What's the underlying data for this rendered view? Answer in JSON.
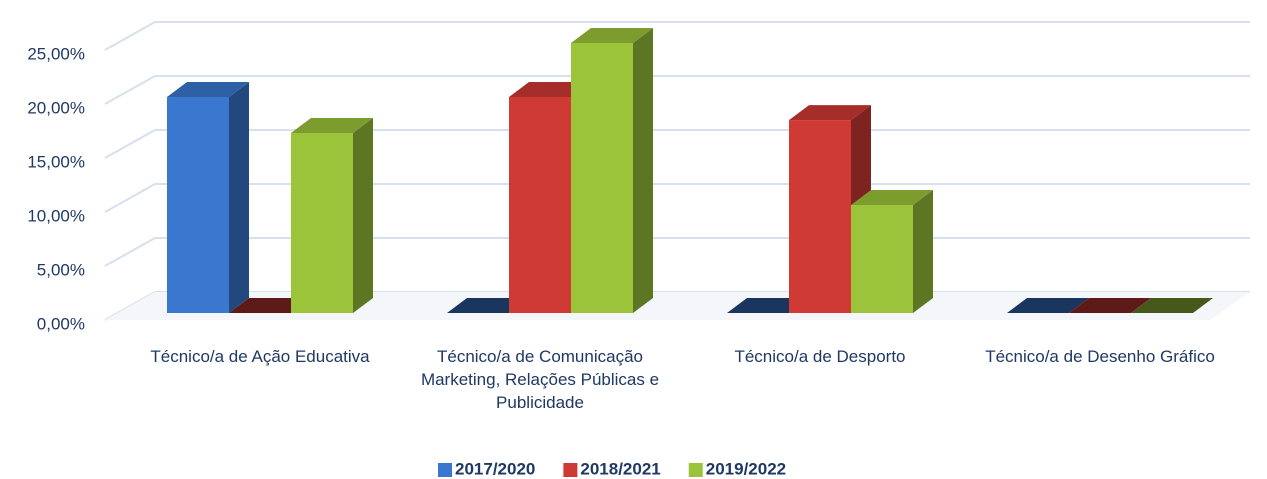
{
  "chart_data": {
    "type": "bar3d",
    "categories": [
      "Técnico/a de Ação Educativa",
      "Técnico/a de Comunicação Marketing, Relações Públicas e Publicidade",
      "Técnico/a de Desporto",
      "Técnico/a de Desenho Gráfico"
    ],
    "series": [
      {
        "name": "2017/2020",
        "color": "#3a78d0",
        "values": [
          20,
          0,
          0,
          0
        ]
      },
      {
        "name": "2018/2021",
        "color": "#d03a35",
        "values": [
          0,
          20,
          17.86,
          0
        ]
      },
      {
        "name": "2019/2022",
        "color": "#9bc43a",
        "values": [
          16.67,
          25,
          10,
          0
        ]
      }
    ],
    "ylim": [
      0,
      27.5
    ],
    "yticks": [
      {
        "value": 0,
        "label": "0,00%"
      },
      {
        "value": 5,
        "label": "5,00%"
      },
      {
        "value": 10,
        "label": "10,00%"
      },
      {
        "value": 15,
        "label": "15,00%"
      },
      {
        "value": 20,
        "label": "20,00%"
      },
      {
        "value": 25,
        "label": "25,00%"
      }
    ],
    "grid": true,
    "legend": "bottom"
  }
}
